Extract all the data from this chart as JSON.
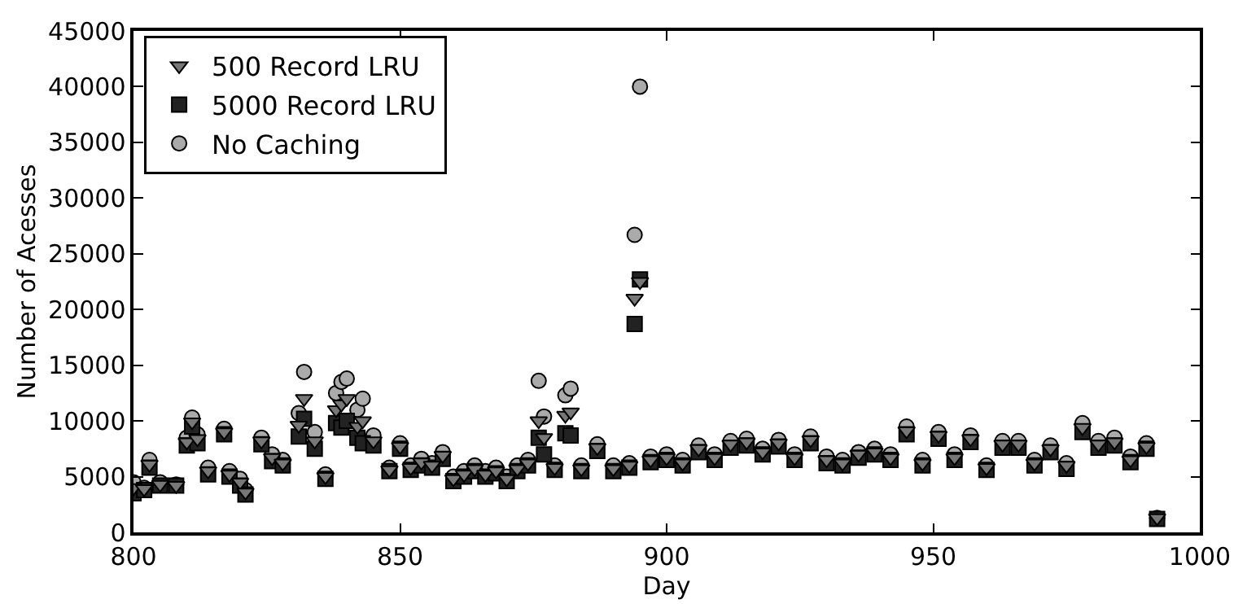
{
  "chart_data": {
    "type": "scatter",
    "xlabel": "Day",
    "ylabel": "Number of Acesses",
    "x": [
      800,
      802,
      803,
      805,
      808,
      810,
      811,
      812,
      814,
      817,
      818,
      820,
      821,
      824,
      826,
      828,
      831,
      832,
      834,
      836,
      838,
      839,
      840,
      842,
      843,
      845,
      848,
      850,
      852,
      854,
      856,
      858,
      860,
      862,
      864,
      866,
      868,
      870,
      872,
      874,
      876,
      877,
      879,
      881,
      882,
      884,
      887,
      890,
      893,
      894,
      895,
      897,
      900,
      903,
      906,
      909,
      912,
      915,
      918,
      921,
      924,
      927,
      930,
      933,
      936,
      939,
      942,
      945,
      948,
      951,
      954,
      957,
      960,
      963,
      966,
      969,
      972,
      975,
      978,
      981,
      984,
      987,
      990,
      992
    ],
    "series": [
      {
        "name": "No Caching",
        "color": "#aaaaaa",
        "marker": "circle",
        "values": [
          4500,
          4000,
          6500,
          4500,
          4300,
          8500,
          10300,
          8800,
          5800,
          9300,
          5500,
          4800,
          3800,
          8500,
          7000,
          6500,
          10700,
          14400,
          9000,
          5200,
          12500,
          13500,
          13800,
          11000,
          12000,
          8700,
          5800,
          8000,
          6000,
          6600,
          6200,
          7200,
          5000,
          5500,
          6000,
          5500,
          5800,
          5000,
          6000,
          6500,
          13600,
          10400,
          6000,
          12300,
          12900,
          6000,
          7900,
          6000,
          6200,
          26700,
          40000,
          6800,
          7000,
          6500,
          7800,
          7000,
          8200,
          8400,
          7500,
          8300,
          7000,
          8600,
          6800,
          6500,
          7200,
          7500,
          7000,
          9500,
          6500,
          9000,
          7000,
          8700,
          6000,
          8200,
          8200,
          6500,
          7800,
          6200,
          9800,
          8200,
          8500,
          6800,
          8000,
          1300
        ]
      },
      {
        "name": "5000 Record LRU",
        "color": "#222222",
        "marker": "square",
        "values": [
          3500,
          3800,
          5800,
          4200,
          4200,
          7800,
          9500,
          8000,
          5200,
          8800,
          5000,
          4200,
          3400,
          7900,
          6400,
          6000,
          8600,
          10200,
          7500,
          4800,
          9800,
          9400,
          10000,
          8500,
          8000,
          7800,
          5500,
          7500,
          5600,
          6000,
          5800,
          6600,
          4600,
          5000,
          5500,
          5000,
          5300,
          4600,
          5500,
          6000,
          8500,
          7000,
          5600,
          8900,
          8700,
          5500,
          7300,
          5500,
          5800,
          18700,
          22700,
          6300,
          6500,
          6000,
          7200,
          6500,
          7600,
          7800,
          7000,
          7700,
          6500,
          8000,
          6200,
          6000,
          6700,
          7000,
          6500,
          8800,
          6000,
          8400,
          6500,
          8100,
          5600,
          7600,
          7600,
          6000,
          7200,
          5700,
          9000,
          7600,
          7800,
          6300,
          7500,
          1200
        ]
      },
      {
        "name": "500 Record LRU",
        "color": "#777777",
        "marker": "triangle",
        "values": [
          4000,
          3900,
          6100,
          4300,
          4200,
          8100,
          9900,
          8400,
          5500,
          9000,
          5200,
          4500,
          3600,
          8200,
          6700,
          6200,
          9600,
          12000,
          8200,
          5000,
          11000,
          11500,
          12000,
          9500,
          10000,
          8200,
          5600,
          7700,
          5800,
          6300,
          6000,
          6900,
          4800,
          5200,
          5700,
          5200,
          5500,
          4800,
          5700,
          6200,
          10000,
          8500,
          5800,
          10500,
          10800,
          5700,
          7600,
          5700,
          6000,
          21000,
          22500,
          6500,
          6700,
          6200,
          7500,
          6700,
          7900,
          8100,
          7200,
          8000,
          6700,
          8300,
          6500,
          6200,
          7000,
          7200,
          6700,
          9100,
          6200,
          8700,
          6700,
          8400,
          5800,
          7900,
          7900,
          6200,
          7500,
          6000,
          9400,
          7900,
          8100,
          6500,
          7700,
          1300
        ]
      }
    ],
    "xlim": [
      800,
      1000
    ],
    "xticks": [
      800,
      850,
      900,
      950,
      1000
    ],
    "ylim": [
      0,
      45000
    ],
    "yticks": [
      0,
      5000,
      10000,
      15000,
      20000,
      25000,
      30000,
      35000,
      40000,
      45000
    ],
    "legend": "top left"
  }
}
